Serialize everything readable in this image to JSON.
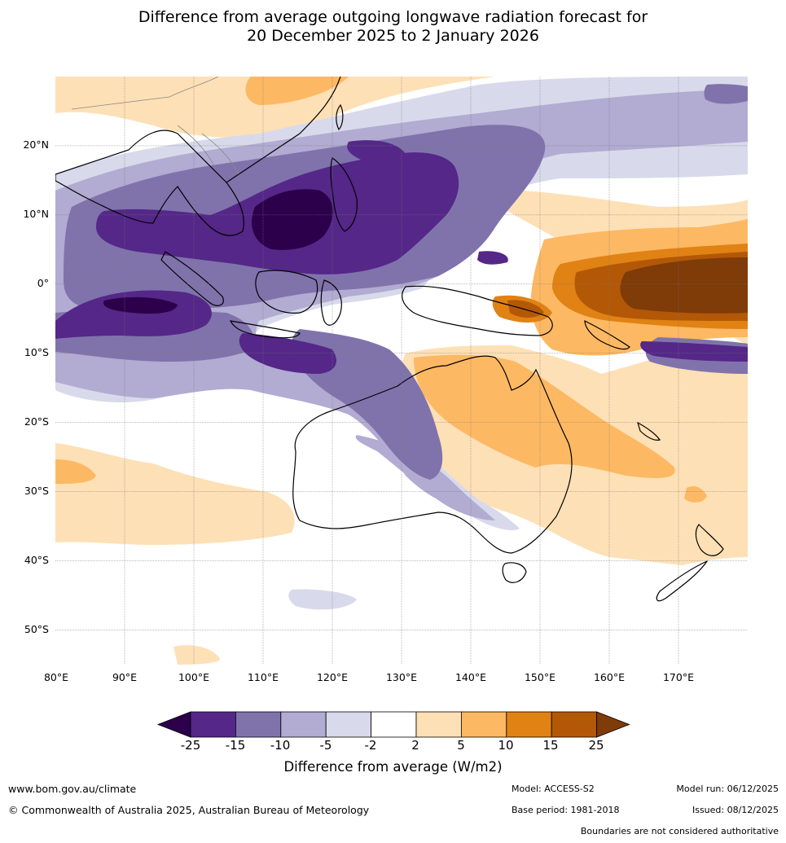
{
  "title": {
    "line1": "Difference from average outgoing longwave radiation forecast for",
    "line2": "20 December 2025 to 2 January 2026"
  },
  "map": {
    "lat_labels": [
      "20°N",
      "10°N",
      "0°",
      "10°S",
      "20°S",
      "30°S",
      "40°S",
      "50°S"
    ],
    "lon_labels": [
      "80°E",
      "90°E",
      "100°E",
      "110°E",
      "120°E",
      "130°E",
      "140°E",
      "150°E",
      "160°E",
      "170°E"
    ],
    "lat_range": [
      -55,
      30
    ],
    "lon_range": [
      80,
      180
    ]
  },
  "legend": {
    "ticks": [
      "-25",
      "-15",
      "-10",
      "-5",
      "-2",
      "2",
      "5",
      "10",
      "15",
      "25"
    ],
    "colors": [
      "#2d004b",
      "#542788",
      "#8073ac",
      "#b2abd2",
      "#d8daeb",
      "#ffffff",
      "#fee0b6",
      "#fdb863",
      "#e08214",
      "#b35806",
      "#7f3b08"
    ],
    "title": "Difference from average (W/m2)"
  },
  "footer": {
    "website": "www.bom.gov.au/climate",
    "copyright": "© Commonwealth of Australia 2025, Australian Bureau of Meteorology",
    "model": "Model: ACCESS-S2",
    "base_period": "Base period: 1981-2018",
    "model_run": "Model run: 06/12/2025",
    "issued": "Issued: 08/12/2025",
    "disclaimer": "Boundaries are not considered authoritative"
  }
}
